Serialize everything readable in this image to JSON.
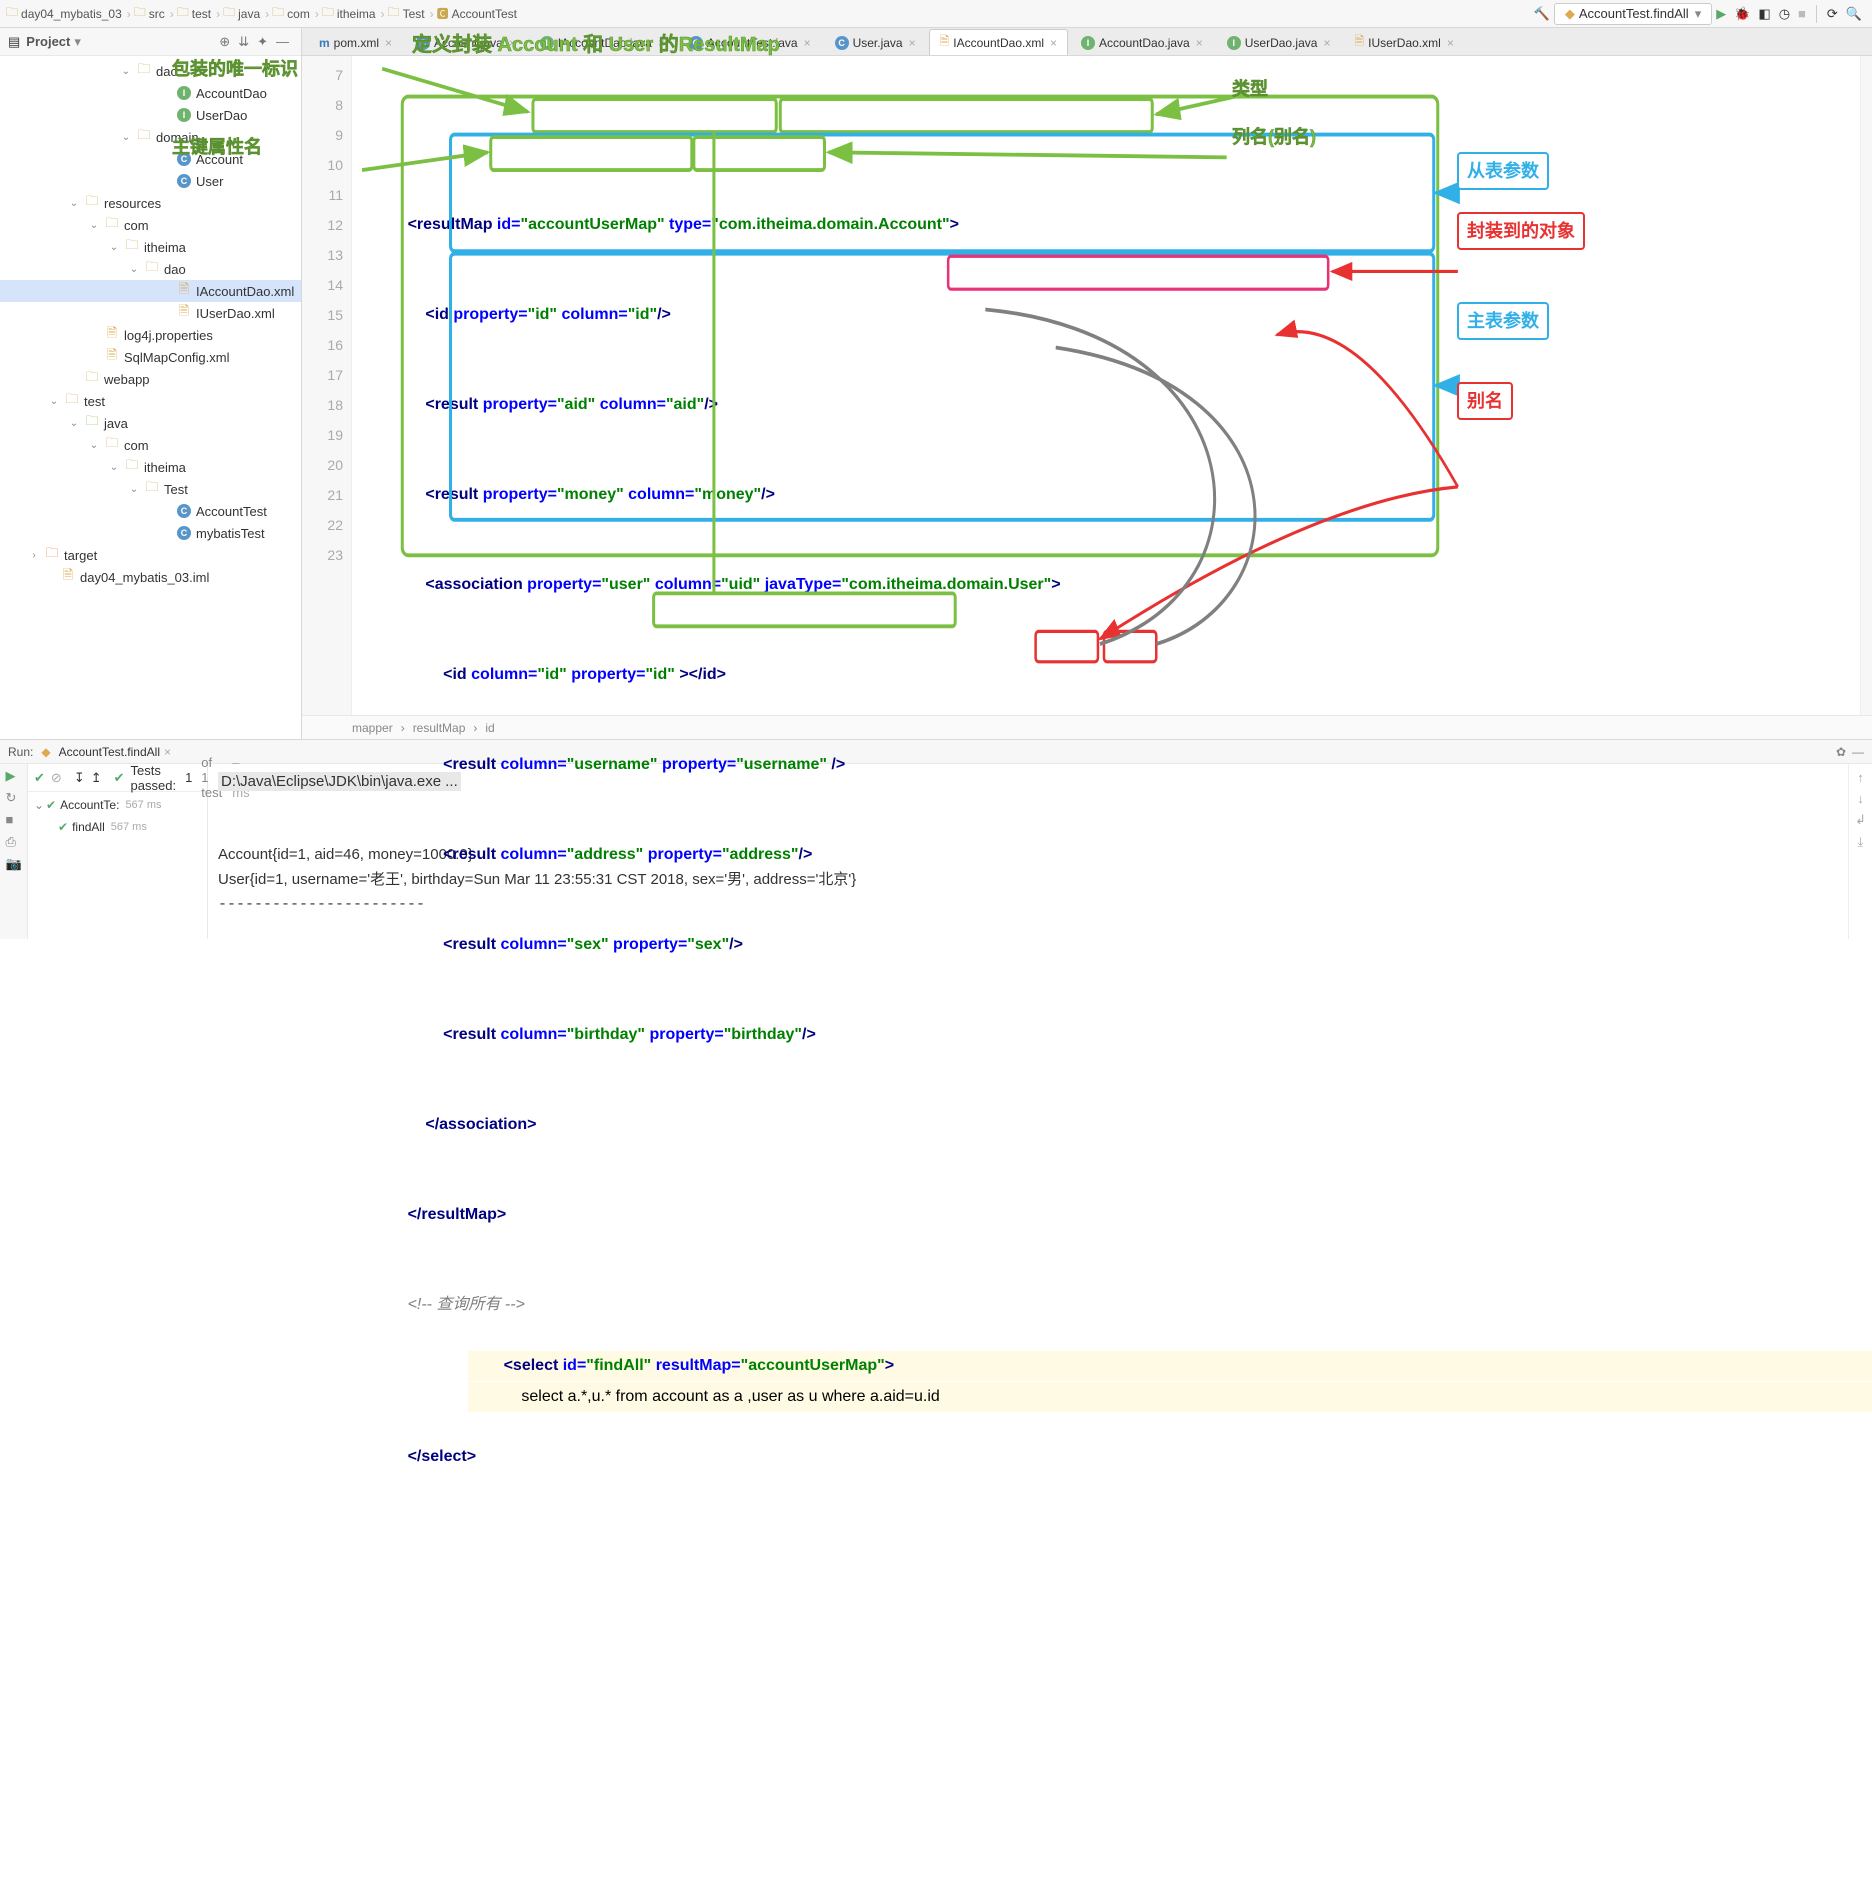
{
  "breadcrumbs": [
    "day04_mybatis_03",
    "src",
    "test",
    "java",
    "com",
    "itheima",
    "Test",
    "AccountTest"
  ],
  "run_config": "AccountTest.findAll",
  "project_title": "Project",
  "tree": {
    "n0": "dao",
    "n1": "AccountDao",
    "n2": "UserDao",
    "n3": "domain",
    "n4": "Account",
    "n5": "User",
    "n6": "resources",
    "n7": "com",
    "n8": "itheima",
    "n9": "dao",
    "n10": "IAccountDao.xml",
    "n11": "IUserDao.xml",
    "n12": "log4j.properties",
    "n13": "SqlMapConfig.xml",
    "n14": "webapp",
    "n15": "test",
    "n16": "java",
    "n17": "com",
    "n18": "itheima",
    "n19": "Test",
    "n20": "AccountTest",
    "n21": "mybatisTest",
    "n22": "target",
    "n23": "day04_mybatis_03.iml"
  },
  "tabs": [
    {
      "label": "pom.xml",
      "icon": "m",
      "active": false
    },
    {
      "label": "Account.java",
      "icon": "c",
      "active": false
    },
    {
      "label": "IAccountDao.java",
      "icon": "i",
      "active": false
    },
    {
      "label": "AccountTest.java",
      "icon": "c",
      "active": false
    },
    {
      "label": "User.java",
      "icon": "c",
      "active": false
    },
    {
      "label": "IAccountDao.xml",
      "icon": "x",
      "active": true
    },
    {
      "label": "AccountDao.java",
      "icon": "i",
      "active": false
    },
    {
      "label": "UserDao.java",
      "icon": "i",
      "active": false
    },
    {
      "label": "IUserDao.xml",
      "icon": "x",
      "active": false
    }
  ],
  "line_start": 7,
  "line_end": 23,
  "code": {
    "l8": {
      "pre": "        ",
      "t1": "<resultMap ",
      "a1": "id=",
      "s1": "\"accountUserMap\"",
      "sp": " ",
      "a2": "type=",
      "s2": "\"com.itheima.domain.Account\"",
      "t2": ">"
    },
    "l9": {
      "pre": "            ",
      "t1": "<id ",
      "a1": "property=",
      "s1": "\"id\"",
      "sp": " ",
      "a2": "column=",
      "s2": "\"id\"",
      "t2": "/>"
    },
    "l10": {
      "pre": "            ",
      "t1": "<result ",
      "a1": "property=",
      "s1": "\"aid\"",
      "sp": " ",
      "a2": "column=",
      "s2": "\"aid\"",
      "t2": "/>"
    },
    "l11": {
      "pre": "            ",
      "t1": "<result ",
      "a1": "property=",
      "s1": "\"money\"",
      "sp": " ",
      "a2": "column=",
      "s2": "\"money\"",
      "t2": "/>"
    },
    "l12": {
      "pre": "            ",
      "t1": "<association ",
      "a1": "property=",
      "s1": "\"user\"",
      "sp": " ",
      "a2": "column=",
      "s2": "\"uid\"",
      "sp2": " ",
      "a3": "javaType=",
      "s3": "\"com.itheima.domain.User\"",
      "t2": ">"
    },
    "l13": {
      "pre": "                ",
      "t1": "<id ",
      "a1": "column=",
      "s1": "\"id\"",
      "sp": " ",
      "a2": "property=",
      "s2": "\"id\"",
      "sp2": " ",
      "t2": "></id>"
    },
    "l14": {
      "pre": "                ",
      "t1": "<result ",
      "a1": "column=",
      "s1": "\"username\"",
      "sp": " ",
      "a2": "property=",
      "s2": "\"username\"",
      "sp2": " ",
      "t2": "/>"
    },
    "l15": {
      "pre": "                ",
      "t1": "<result ",
      "a1": "column=",
      "s1": "\"address\"",
      "sp": " ",
      "a2": "property=",
      "s2": "\"address\"",
      "t2": "/>"
    },
    "l16": {
      "pre": "                ",
      "t1": "<result ",
      "a1": "column=",
      "s1": "\"sex\"",
      "sp": " ",
      "a2": "property=",
      "s2": "\"sex\"",
      "t2": "/>"
    },
    "l17": {
      "pre": "                ",
      "t1": "<result ",
      "a1": "column=",
      "s1": "\"birthday\"",
      "sp": " ",
      "a2": "property=",
      "s2": "\"birthday\"",
      "t2": "/>"
    },
    "l18": {
      "pre": "            ",
      "t1": "</association>"
    },
    "l19": {
      "pre": "        ",
      "t1": "</resultMap>"
    },
    "l20": {
      "pre": "        ",
      "c": "<!-- 查询所有 -->"
    },
    "l21": {
      "pre": "        ",
      "t1": "<select ",
      "a1": "id=",
      "s1": "\"findAll\"",
      "sp": " ",
      "a2": "resultMap=",
      "s2": "\"accountUserMap\"",
      "t2": ">"
    },
    "l22": {
      "pre": "            ",
      "txt": "select a.*,u.* from account as a ,user as u where a.aid=u.id"
    },
    "l23": {
      "pre": "        ",
      "t1": "</select>"
    }
  },
  "code_crumb": [
    "mapper",
    "resultMap",
    "id"
  ],
  "annotations": {
    "title_top": "定义封装 Account 和 User 的ResultMap",
    "wrap_id": "包装的唯一标识",
    "pk_prop": "主键属性名",
    "type": "类型",
    "col_alias": "列名(别名)",
    "from_table": "从表参数",
    "wrap_obj": "封装到的对象",
    "main_table": "主表参数",
    "alias": "别名"
  },
  "run": {
    "title": "Run:",
    "tab": "AccountTest.findAll",
    "tests_passed_pre": "Tests passed:",
    "tests_passed_count": "1",
    "tests_passed_of": "of 1 test",
    "tests_time": "– 567 ms",
    "test_root": "AccountTe:",
    "test_root_time": "567 ms",
    "test_child": "findAll",
    "test_child_time": "567 ms",
    "console_l1": "D:\\Java\\Eclipse\\JDK\\bin\\java.exe ...",
    "console_l2": "Account{id=1, aid=46, money=1000.0}",
    "console_l3": "User{id=1, username='老王', birthday=Sun Mar 11 23:55:31 CST 2018, sex='男', address='北京'}"
  },
  "style": {
    "green": "#7bc043",
    "cyan": "#31b0e8",
    "red": "#e83131",
    "magenta": "#e83176",
    "gray": "#808080"
  }
}
